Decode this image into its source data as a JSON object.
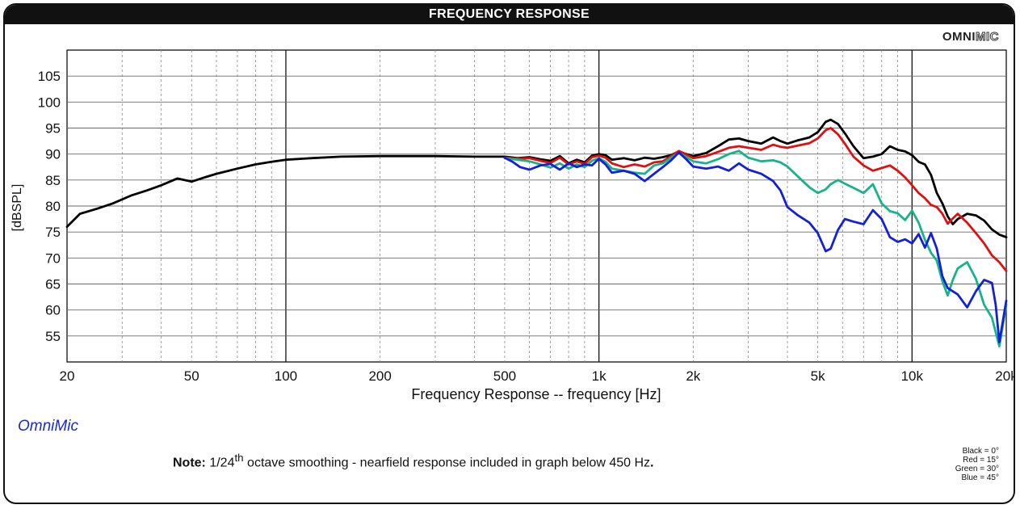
{
  "header": {
    "title": "FREQUENCY RESPONSE"
  },
  "logo": {
    "bold": "OMNI",
    "outline": "MIC"
  },
  "brand": "OmniMic",
  "note": {
    "label": "Note:",
    "prefix": " 1/24",
    "sup": "th",
    "text": " octave smoothing - nearfield response included in graph below 450 Hz",
    "end": "."
  },
  "legend": [
    "Black = 0°",
    "Red = 15°",
    "Green = 30°",
    "Blue = 45°"
  ],
  "chart_data": {
    "type": "line",
    "title": "FREQUENCY RESPONSE",
    "xlabel": "Frequency Response -- frequency [Hz]",
    "ylabel": "[dBSPL]",
    "xscale": "log",
    "xlim": [
      20,
      20000
    ],
    "ylim": [
      50,
      110
    ],
    "x_ticks": [
      20,
      50,
      100,
      200,
      500,
      1000,
      2000,
      5000,
      10000,
      20000
    ],
    "x_tick_labels": [
      "20",
      "50",
      "100",
      "200",
      "500",
      "1k",
      "2k",
      "5k",
      "10k",
      "20k"
    ],
    "y_ticks": [
      55,
      60,
      65,
      70,
      75,
      80,
      85,
      90,
      95,
      100,
      105
    ],
    "y_tick_labels": [
      "55",
      "60",
      "65",
      "70",
      "75",
      "80",
      "85",
      "90",
      "95",
      "100",
      "105"
    ],
    "grid": true,
    "legend_position": "bottom-right",
    "series": [
      {
        "name": "0°",
        "color": "#000000",
        "points": [
          [
            20,
            76
          ],
          [
            22,
            78.5
          ],
          [
            25,
            79.5
          ],
          [
            28,
            80.5
          ],
          [
            32,
            82
          ],
          [
            36,
            83
          ],
          [
            40,
            84
          ],
          [
            45,
            85.3
          ],
          [
            50,
            84.7
          ],
          [
            55,
            85.5
          ],
          [
            60,
            86.2
          ],
          [
            70,
            87.2
          ],
          [
            80,
            88
          ],
          [
            90,
            88.5
          ],
          [
            100,
            88.9
          ],
          [
            120,
            89.2
          ],
          [
            150,
            89.5
          ],
          [
            200,
            89.6
          ],
          [
            300,
            89.6
          ],
          [
            400,
            89.5
          ],
          [
            500,
            89.5
          ],
          [
            550,
            89.2
          ],
          [
            600,
            89.4
          ],
          [
            650,
            89
          ],
          [
            700,
            88.7
          ],
          [
            750,
            89.6
          ],
          [
            800,
            88.2
          ],
          [
            850,
            88.9
          ],
          [
            900,
            88.4
          ],
          [
            950,
            89.7
          ],
          [
            1000,
            90
          ],
          [
            1050,
            89.8
          ],
          [
            1100,
            88.9
          ],
          [
            1200,
            89.2
          ],
          [
            1300,
            88.8
          ],
          [
            1400,
            89.3
          ],
          [
            1500,
            89.1
          ],
          [
            1600,
            89.4
          ],
          [
            1700,
            89.8
          ],
          [
            1800,
            90.5
          ],
          [
            1900,
            90
          ],
          [
            2000,
            89.6
          ],
          [
            2200,
            90.2
          ],
          [
            2400,
            91.5
          ],
          [
            2600,
            92.8
          ],
          [
            2800,
            93
          ],
          [
            3000,
            92.5
          ],
          [
            3300,
            92
          ],
          [
            3600,
            93.2
          ],
          [
            3800,
            92.5
          ],
          [
            4000,
            92
          ],
          [
            4300,
            92.6
          ],
          [
            4700,
            93.2
          ],
          [
            5000,
            94.2
          ],
          [
            5300,
            96.2
          ],
          [
            5500,
            96.6
          ],
          [
            5800,
            95.8
          ],
          [
            6100,
            94
          ],
          [
            6500,
            91.5
          ],
          [
            7000,
            89.2
          ],
          [
            7500,
            89.5
          ],
          [
            8000,
            90
          ],
          [
            8500,
            91.5
          ],
          [
            9000,
            90.8
          ],
          [
            9500,
            90.5
          ],
          [
            10000,
            89.8
          ],
          [
            10500,
            88.5
          ],
          [
            11000,
            88
          ],
          [
            11500,
            86
          ],
          [
            12000,
            82.5
          ],
          [
            12500,
            80.5
          ],
          [
            13000,
            78
          ],
          [
            13500,
            76.5
          ],
          [
            14000,
            77.5
          ],
          [
            15000,
            78.5
          ],
          [
            16000,
            78.2
          ],
          [
            17000,
            77.2
          ],
          [
            18000,
            75.5
          ],
          [
            19000,
            74.5
          ],
          [
            20000,
            74
          ]
        ]
      },
      {
        "name": "15°",
        "color": "#e01010",
        "points": [
          [
            500,
            89.3
          ],
          [
            550,
            89.1
          ],
          [
            600,
            89.2
          ],
          [
            650,
            88.7
          ],
          [
            700,
            88.3
          ],
          [
            750,
            89.3
          ],
          [
            800,
            88
          ],
          [
            850,
            88.6
          ],
          [
            900,
            88.1
          ],
          [
            950,
            89.4
          ],
          [
            1000,
            89.7
          ],
          [
            1050,
            89.3
          ],
          [
            1100,
            88.2
          ],
          [
            1200,
            87.5
          ],
          [
            1300,
            88
          ],
          [
            1400,
            87.6
          ],
          [
            1500,
            88.4
          ],
          [
            1600,
            88.6
          ],
          [
            1700,
            89.6
          ],
          [
            1800,
            90.6
          ],
          [
            1900,
            89.9
          ],
          [
            2000,
            89.2
          ],
          [
            2200,
            89.6
          ],
          [
            2400,
            90.4
          ],
          [
            2600,
            91.2
          ],
          [
            2800,
            91.5
          ],
          [
            3000,
            91.2
          ],
          [
            3300,
            90.8
          ],
          [
            3600,
            91.8
          ],
          [
            3800,
            91.4
          ],
          [
            4000,
            91.2
          ],
          [
            4300,
            91.6
          ],
          [
            4700,
            92.1
          ],
          [
            5000,
            93
          ],
          [
            5300,
            94.6
          ],
          [
            5500,
            95
          ],
          [
            5800,
            93.8
          ],
          [
            6100,
            92
          ],
          [
            6500,
            89.5
          ],
          [
            7000,
            87.8
          ],
          [
            7500,
            86.8
          ],
          [
            8000,
            87.3
          ],
          [
            8500,
            87.8
          ],
          [
            9000,
            86.8
          ],
          [
            9500,
            85.5
          ],
          [
            10000,
            84
          ],
          [
            10500,
            82.5
          ],
          [
            11000,
            81.5
          ],
          [
            11500,
            80.2
          ],
          [
            12000,
            79.8
          ],
          [
            12500,
            78.5
          ],
          [
            13000,
            76.6
          ],
          [
            13500,
            77.6
          ],
          [
            14000,
            78.5
          ],
          [
            15000,
            76.8
          ],
          [
            16000,
            74.8
          ],
          [
            17000,
            72.8
          ],
          [
            18000,
            70.5
          ],
          [
            19000,
            69.2
          ],
          [
            20000,
            67.5
          ]
        ]
      },
      {
        "name": "30°",
        "color": "#16b488",
        "points": [
          [
            500,
            89.2
          ],
          [
            550,
            88.9
          ],
          [
            600,
            88.6
          ],
          [
            650,
            88
          ],
          [
            700,
            87.4
          ],
          [
            750,
            88.2
          ],
          [
            800,
            87.2
          ],
          [
            850,
            88
          ],
          [
            900,
            87.5
          ],
          [
            950,
            88.7
          ],
          [
            1000,
            89.2
          ],
          [
            1050,
            88.5
          ],
          [
            1100,
            87.2
          ],
          [
            1200,
            86.8
          ],
          [
            1300,
            86.4
          ],
          [
            1400,
            86.2
          ],
          [
            1500,
            87.8
          ],
          [
            1600,
            88.2
          ],
          [
            1700,
            89.3
          ],
          [
            1800,
            90.2
          ],
          [
            1900,
            89.4
          ],
          [
            2000,
            88.6
          ],
          [
            2200,
            88.2
          ],
          [
            2400,
            89
          ],
          [
            2600,
            90
          ],
          [
            2800,
            90.6
          ],
          [
            3000,
            89.3
          ],
          [
            3300,
            88.6
          ],
          [
            3600,
            88.8
          ],
          [
            3800,
            88.4
          ],
          [
            4000,
            87.6
          ],
          [
            4300,
            85.8
          ],
          [
            4700,
            83.6
          ],
          [
            5000,
            82.5
          ],
          [
            5300,
            83.2
          ],
          [
            5500,
            84.2
          ],
          [
            5800,
            85
          ],
          [
            6100,
            84.3
          ],
          [
            6500,
            83.5
          ],
          [
            7000,
            82.5
          ],
          [
            7500,
            84.2
          ],
          [
            8000,
            80.5
          ],
          [
            8500,
            79
          ],
          [
            9000,
            78.6
          ],
          [
            9500,
            77.3
          ],
          [
            10000,
            79.1
          ],
          [
            10500,
            76.8
          ],
          [
            11000,
            73.5
          ],
          [
            11500,
            71
          ],
          [
            12000,
            69.5
          ],
          [
            12500,
            65.5
          ],
          [
            13000,
            62.8
          ],
          [
            13500,
            65.8
          ],
          [
            14000,
            68
          ],
          [
            15000,
            69.2
          ],
          [
            16000,
            66
          ],
          [
            17000,
            61
          ],
          [
            18000,
            58.5
          ],
          [
            19000,
            53
          ],
          [
            20000,
            61
          ]
        ]
      },
      {
        "name": "45°",
        "color": "#1420d8",
        "points": [
          [
            500,
            89.3
          ],
          [
            530,
            88.5
          ],
          [
            560,
            87.5
          ],
          [
            600,
            87
          ],
          [
            650,
            87.8
          ],
          [
            700,
            88.1
          ],
          [
            750,
            87
          ],
          [
            800,
            88.2
          ],
          [
            850,
            87.5
          ],
          [
            900,
            88
          ],
          [
            950,
            87.8
          ],
          [
            1000,
            89.1
          ],
          [
            1050,
            88
          ],
          [
            1100,
            86.4
          ],
          [
            1200,
            86.8
          ],
          [
            1300,
            86.2
          ],
          [
            1400,
            84.8
          ],
          [
            1500,
            86.2
          ],
          [
            1600,
            87.5
          ],
          [
            1700,
            88.8
          ],
          [
            1800,
            90.3
          ],
          [
            1900,
            89
          ],
          [
            2000,
            87.6
          ],
          [
            2200,
            87.2
          ],
          [
            2400,
            87.6
          ],
          [
            2600,
            86.8
          ],
          [
            2800,
            88.2
          ],
          [
            3000,
            87
          ],
          [
            3300,
            86.2
          ],
          [
            3600,
            84.8
          ],
          [
            3800,
            83
          ],
          [
            4000,
            79.8
          ],
          [
            4300,
            78.3
          ],
          [
            4700,
            76.8
          ],
          [
            5000,
            74.8
          ],
          [
            5300,
            71.3
          ],
          [
            5500,
            71.8
          ],
          [
            5800,
            75.4
          ],
          [
            6100,
            77.5
          ],
          [
            6500,
            77
          ],
          [
            7000,
            76.5
          ],
          [
            7500,
            79.2
          ],
          [
            8000,
            77.5
          ],
          [
            8500,
            74
          ],
          [
            9000,
            73.1
          ],
          [
            9500,
            73.6
          ],
          [
            10000,
            72.8
          ],
          [
            10500,
            74.6
          ],
          [
            11000,
            72
          ],
          [
            11500,
            74.8
          ],
          [
            12000,
            71.8
          ],
          [
            12500,
            66.5
          ],
          [
            13000,
            64.2
          ],
          [
            14000,
            63
          ],
          [
            15000,
            60.5
          ],
          [
            16000,
            63.6
          ],
          [
            17000,
            65.8
          ],
          [
            18000,
            65.2
          ],
          [
            18500,
            61
          ],
          [
            19000,
            53.8
          ],
          [
            20000,
            61.8
          ]
        ]
      }
    ]
  }
}
